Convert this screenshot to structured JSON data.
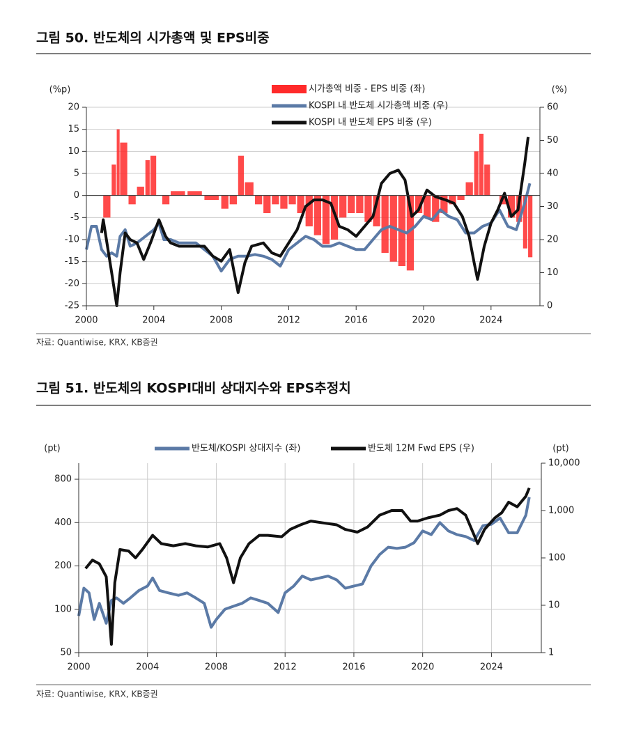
{
  "chart_data": [
    {
      "type": "combo",
      "title": "그림 50. 반도체의 시가총액 및 EPS비중",
      "source": "자료: Quantiwise, KRX, KB증권",
      "y_label": "(%p)",
      "y2_label": "(%)",
      "xlim": [
        2000,
        2026.9
      ],
      "xticks": [
        2000,
        2004,
        2008,
        2012,
        2016,
        2020,
        2024
      ],
      "ylim": [
        -25,
        20
      ],
      "yticks": [
        -25,
        -20,
        -15,
        -10,
        -5,
        0,
        5,
        10,
        15,
        20
      ],
      "y2lim": [
        0,
        60
      ],
      "y2ticks": [
        0,
        10,
        20,
        30,
        40,
        50,
        60
      ],
      "grid": true,
      "x_grid": false,
      "legend": "top",
      "series": [
        {
          "name": "시가총액 비중 - EPS 비중 (좌)",
          "kind": "bar",
          "color": "#ff2a2a",
          "x": [
            2001.0,
            2001.5,
            2001.8,
            2002.0,
            2002.5,
            2003.0,
            2003.5,
            2003.8,
            2004.2,
            2004.5,
            2005,
            2006,
            2007,
            2008,
            2008.5,
            2009.0,
            2009.4,
            2010,
            2010.5,
            2011,
            2011.5,
            2012,
            2012.5,
            2013,
            2013.5,
            2014,
            2014.5,
            2015,
            2015.5,
            2016,
            2016.5,
            2017,
            2017.5,
            2018,
            2018.5,
            2019,
            2019.5,
            2020,
            2020.5,
            2021,
            2021.5,
            2022,
            2022.5,
            2023.0,
            2023.3,
            2023.6,
            2024,
            2024.5,
            2025,
            2025.5,
            2025.9,
            2026.2
          ],
          "values": [
            -5,
            7,
            15,
            12,
            -2,
            2,
            8,
            9,
            0,
            -2,
            1,
            1,
            -1,
            -3,
            -2,
            9,
            3,
            -2,
            -4,
            -2,
            -3,
            -2,
            -4,
            -7,
            -9,
            -11,
            -10,
            -5,
            -4,
            -4,
            -6,
            -7,
            -13,
            -15,
            -16,
            -17,
            -4,
            -5,
            -6,
            -4,
            -2,
            -1,
            3,
            10,
            14,
            7,
            0,
            -2,
            -5,
            -6,
            -12,
            -14
          ]
        },
        {
          "name": "KOSPI 내 반도체 시가총액 비중 (우)",
          "kind": "line",
          "axis": "y2",
          "color": "#5b7aa6",
          "x": [
            2000.0,
            2000.3,
            2000.6,
            2000.9,
            2001.2,
            2001.5,
            2001.8,
            2002.0,
            2002.3,
            2002.6,
            2003.0,
            2003.5,
            2004.0,
            2004.3,
            2004.6,
            2005.0,
            2005.5,
            2006.0,
            2006.5,
            2007.0,
            2007.5,
            2008.0,
            2008.5,
            2009.0,
            2009.5,
            2010.0,
            2010.5,
            2011.0,
            2011.5,
            2012.0,
            2012.5,
            2013.0,
            2013.5,
            2014.0,
            2014.5,
            2015.0,
            2015.5,
            2016.0,
            2016.5,
            2017.0,
            2017.5,
            2018.0,
            2018.5,
            2019.0,
            2019.5,
            2020.0,
            2020.5,
            2021.0,
            2021.5,
            2022.0,
            2022.5,
            2023.0,
            2023.5,
            2024.0,
            2024.5,
            2025.0,
            2025.5,
            2026.0,
            2026.3
          ],
          "values": [
            17,
            24,
            24,
            17,
            15,
            16,
            15,
            21,
            23,
            18,
            19,
            21,
            23,
            25,
            20,
            20,
            19,
            19,
            19,
            17,
            15,
            10.5,
            14,
            15,
            15,
            15.5,
            15,
            14,
            12,
            17,
            19,
            21,
            20,
            18,
            18,
            19,
            18,
            17,
            17,
            20,
            23,
            24,
            23,
            22,
            24,
            27,
            26,
            29,
            27,
            26,
            22,
            22,
            24,
            25,
            29,
            24,
            23,
            31,
            37
          ]
        },
        {
          "name": "KOSPI 내 반도체 EPS 비중 (우)",
          "kind": "line",
          "axis": "y2",
          "color": "#111111",
          "x": [
            2000.9,
            2001.0,
            2001.5,
            2001.8,
            2002.0,
            2002.3,
            2002.6,
            2003.0,
            2003.4,
            2003.8,
            2004.3,
            2004.7,
            2005.0,
            2005.5,
            2006.0,
            2006.5,
            2007.0,
            2007.5,
            2008.0,
            2008.5,
            2009.0,
            2009.4,
            2009.8,
            2010.5,
            2011.0,
            2011.5,
            2012.0,
            2012.5,
            2013.0,
            2013.5,
            2014.0,
            2014.5,
            2015.0,
            2015.5,
            2016.0,
            2016.5,
            2017.0,
            2017.5,
            2018.0,
            2018.5,
            2018.9,
            2019.3,
            2019.7,
            2020.2,
            2020.7,
            2021.3,
            2021.8,
            2022.3,
            2022.7,
            2023.0,
            2023.2,
            2023.6,
            2024.0,
            2024.4,
            2024.8,
            2025.2,
            2025.6,
            2026.0,
            2026.2
          ],
          "values": [
            22,
            26,
            10,
            0,
            10,
            22,
            20,
            19,
            14,
            19,
            26,
            21,
            19,
            18,
            18,
            18,
            18,
            15,
            13.5,
            17,
            4,
            13,
            18,
            19,
            16,
            15,
            19,
            23,
            30,
            32,
            32,
            31,
            24,
            23,
            21,
            24,
            27,
            37,
            40,
            41,
            38,
            27,
            29,
            35,
            33,
            32,
            31,
            27,
            21,
            13,
            8,
            18,
            25,
            29,
            34,
            27,
            29,
            43,
            51
          ]
        }
      ]
    },
    {
      "type": "line",
      "title": "그림 51. 반도체의 KOSPI대비 상대지수와 EPS추정치",
      "source": "자료: Quantiwise, KRX, KB증권",
      "y_label": "(pt)",
      "y2_label": "(pt)",
      "xlim": [
        2000,
        2026.9
      ],
      "xticks": [
        2000,
        2004,
        2008,
        2012,
        2016,
        2020,
        2024
      ],
      "ylim": [
        50,
        1034
      ],
      "ylog": true,
      "yticks": [
        50,
        100,
        200,
        400,
        800
      ],
      "y2lim": [
        1,
        10000
      ],
      "y2log": true,
      "y2ticks": [
        1,
        10,
        100,
        {
          "value": 1000,
          "label": "1,000"
        },
        {
          "value": 10000,
          "label": "10,000"
        }
      ],
      "grid": true,
      "x_grid": true,
      "legend": "top",
      "series": [
        {
          "name": "반도체/KOSPI 상대지수 (좌)",
          "kind": "line",
          "color": "#5b7aa6",
          "x": [
            2000.0,
            2000.3,
            2000.6,
            2000.9,
            2001.2,
            2001.6,
            2001.9,
            2002.2,
            2002.6,
            2003.0,
            2003.5,
            2004.0,
            2004.3,
            2004.7,
            2005.2,
            2005.8,
            2006.3,
            2006.8,
            2007.3,
            2007.7,
            2008.0,
            2008.5,
            2009.0,
            2009.5,
            2010.0,
            2010.5,
            2011.0,
            2011.6,
            2012.0,
            2012.5,
            2013.0,
            2013.5,
            2014.0,
            2014.5,
            2015.0,
            2015.5,
            2016.0,
            2016.5,
            2017.0,
            2017.5,
            2018.0,
            2018.5,
            2019.0,
            2019.5,
            2020.0,
            2020.5,
            2021.0,
            2021.5,
            2022.0,
            2022.5,
            2023.0,
            2023.5,
            2024.0,
            2024.5,
            2025.0,
            2025.5,
            2026.0,
            2026.2
          ],
          "values": [
            90,
            140,
            130,
            85,
            110,
            80,
            115,
            120,
            110,
            120,
            135,
            145,
            165,
            135,
            130,
            125,
            130,
            120,
            110,
            75,
            85,
            100,
            105,
            110,
            120,
            115,
            110,
            95,
            130,
            145,
            170,
            160,
            165,
            170,
            160,
            140,
            145,
            150,
            200,
            240,
            270,
            265,
            270,
            290,
            350,
            330,
            400,
            350,
            330,
            320,
            300,
            380,
            390,
            430,
            340,
            340,
            450,
            600
          ]
        },
        {
          "name": "반도체 12M Fwd EPS (우)",
          "kind": "line",
          "axis": "y2",
          "color": "#111111",
          "x": [
            2000.4,
            2000.8,
            2001.2,
            2001.6,
            2001.9,
            2002.1,
            2002.4,
            2002.9,
            2003.3,
            2003.7,
            2004.3,
            2004.8,
            2005.5,
            2006.2,
            2006.8,
            2007.5,
            2008.2,
            2008.6,
            2009.0,
            2009.4,
            2009.9,
            2010.5,
            2011.0,
            2011.8,
            2012.3,
            2012.9,
            2013.5,
            2014.2,
            2015.0,
            2015.5,
            2016.2,
            2016.8,
            2017.5,
            2018.2,
            2018.8,
            2019.3,
            2019.7,
            2020.3,
            2021.0,
            2021.5,
            2022.0,
            2022.5,
            2023.0,
            2023.2,
            2023.6,
            2024.2,
            2024.6,
            2025.0,
            2025.5,
            2026.0,
            2026.2
          ],
          "values": [
            60,
            90,
            75,
            40,
            1.5,
            30,
            150,
            140,
            100,
            150,
            300,
            200,
            180,
            200,
            180,
            170,
            200,
            100,
            30,
            100,
            200,
            300,
            300,
            280,
            400,
            500,
            600,
            550,
            500,
            400,
            350,
            450,
            800,
            1000,
            1000,
            600,
            600,
            700,
            800,
            1000,
            1100,
            800,
            300,
            200,
            400,
            700,
            900,
            1500,
            1200,
            2000,
            3000
          ]
        }
      ]
    }
  ]
}
